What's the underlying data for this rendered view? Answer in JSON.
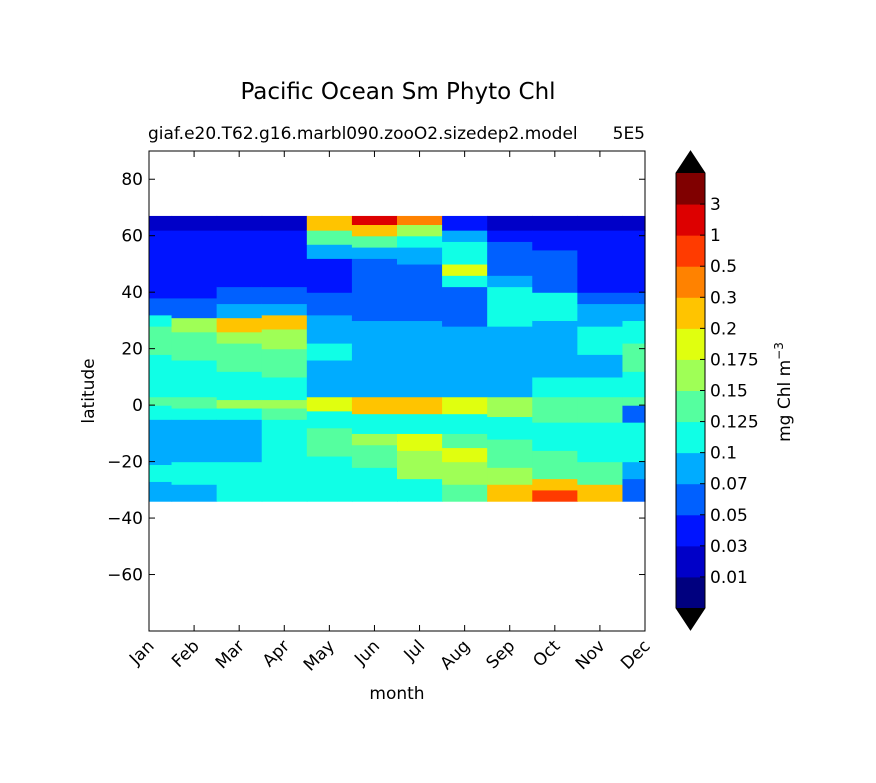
{
  "chart_data": {
    "type": "heatmap",
    "subtype": "filled-contour",
    "title": "Pacific Ocean Sm Phyto Chl",
    "subtitle_left": "giaf.e20.T62.g16.marbl090.zooO2.sizedep2.model",
    "subtitle_right": "5E5",
    "xlabel": "month",
    "ylabel": "latitude",
    "x_categories": [
      "Jan",
      "Feb",
      "Mar",
      "Apr",
      "May",
      "Jun",
      "Jul",
      "Aug",
      "Sep",
      "Oct",
      "Nov",
      "Dec"
    ],
    "y_ticks": [
      "80",
      "60",
      "40",
      "20",
      "0",
      "−20",
      "−40",
      "−60"
    ],
    "y_tick_values": [
      80,
      60,
      40,
      20,
      0,
      -20,
      -40,
      -60
    ],
    "ylim": [
      -80,
      90
    ],
    "data_lat_range": [
      -34,
      67
    ],
    "colorbar": {
      "label": "mg Chl m",
      "label_exponent": "−3",
      "levels": [
        0.01,
        0.03,
        0.05,
        0.07,
        0.1,
        0.125,
        0.15,
        0.175,
        0.2,
        0.3,
        0.5,
        1,
        3
      ],
      "tick_labels": [
        "0.01",
        "0.03",
        "0.05",
        "0.07",
        "0.1",
        "0.125",
        "0.15",
        "0.175",
        "0.2",
        "0.3",
        "0.5",
        "1",
        "3"
      ],
      "colors": [
        "#00007f",
        "#0000c8",
        "#0014ff",
        "#0060ff",
        "#00acff",
        "#10ffe6",
        "#55ff9f",
        "#9fff56",
        "#e0ff0f",
        "#ffc400",
        "#ff8200",
        "#ff3b00",
        "#dd0000",
        "#800000"
      ],
      "extend": "both",
      "over_color": "#000000",
      "under_color": "#000000"
    },
    "bands": [
      {
        "month": "Jan",
        "segments": [
          [
            -34,
            -27,
            4
          ],
          [
            -27,
            -21,
            5
          ],
          [
            -21,
            -5,
            4
          ],
          [
            -5,
            0,
            5
          ],
          [
            0,
            3,
            6
          ],
          [
            3,
            18,
            5
          ],
          [
            18,
            28,
            6
          ],
          [
            28,
            32,
            5
          ],
          [
            32,
            38,
            3
          ],
          [
            38,
            62,
            2
          ],
          [
            62,
            67,
            1
          ]
        ]
      },
      {
        "month": "Feb",
        "segments": [
          [
            -34,
            -28,
            4
          ],
          [
            -28,
            -20,
            5
          ],
          [
            -20,
            -5,
            4
          ],
          [
            -5,
            -1,
            5
          ],
          [
            -1,
            3,
            6
          ],
          [
            3,
            16,
            5
          ],
          [
            16,
            26,
            6
          ],
          [
            26,
            31,
            7
          ],
          [
            31,
            38,
            3
          ],
          [
            38,
            62,
            2
          ],
          [
            62,
            67,
            1
          ]
        ]
      },
      {
        "month": "Mar",
        "segments": [
          [
            -34,
            -20,
            5
          ],
          [
            -20,
            -5,
            4
          ],
          [
            -5,
            -1,
            5
          ],
          [
            -1,
            2,
            7
          ],
          [
            2,
            12,
            5
          ],
          [
            12,
            22,
            6
          ],
          [
            22,
            26,
            7
          ],
          [
            26,
            31,
            9
          ],
          [
            31,
            36,
            4
          ],
          [
            36,
            42,
            3
          ],
          [
            42,
            62,
            2
          ],
          [
            62,
            67,
            1
          ]
        ]
      },
      {
        "month": "Apr",
        "segments": [
          [
            -34,
            -20,
            5
          ],
          [
            -20,
            -5,
            5
          ],
          [
            -5,
            -1,
            6
          ],
          [
            -1,
            2,
            7
          ],
          [
            2,
            10,
            5
          ],
          [
            10,
            20,
            6
          ],
          [
            20,
            27,
            7
          ],
          [
            27,
            32,
            9
          ],
          [
            32,
            36,
            4
          ],
          [
            36,
            42,
            3
          ],
          [
            42,
            62,
            2
          ],
          [
            62,
            67,
            1
          ]
        ]
      },
      {
        "month": "May",
        "segments": [
          [
            -34,
            -18,
            5
          ],
          [
            -18,
            -8,
            6
          ],
          [
            -8,
            -2,
            5
          ],
          [
            -2,
            3,
            8
          ],
          [
            3,
            16,
            4
          ],
          [
            16,
            22,
            5
          ],
          [
            22,
            32,
            4
          ],
          [
            32,
            40,
            3
          ],
          [
            40,
            52,
            2
          ],
          [
            52,
            57,
            4
          ],
          [
            57,
            62,
            6
          ],
          [
            62,
            67,
            9
          ]
        ]
      },
      {
        "month": "Jun",
        "segments": [
          [
            -34,
            -22,
            5
          ],
          [
            -22,
            -14,
            6
          ],
          [
            -14,
            -10,
            7
          ],
          [
            -10,
            -3,
            5
          ],
          [
            -3,
            3,
            9
          ],
          [
            3,
            30,
            4
          ],
          [
            30,
            40,
            3
          ],
          [
            40,
            52,
            3
          ],
          [
            52,
            56,
            4
          ],
          [
            56,
            60,
            6
          ],
          [
            60,
            64,
            9
          ],
          [
            64,
            67,
            12
          ]
        ]
      },
      {
        "month": "Jul",
        "segments": [
          [
            -34,
            -26,
            5
          ],
          [
            -26,
            -16,
            7
          ],
          [
            -16,
            -10,
            8
          ],
          [
            -10,
            -3,
            5
          ],
          [
            -3,
            3,
            9
          ],
          [
            3,
            30,
            4
          ],
          [
            30,
            40,
            3
          ],
          [
            40,
            50,
            3
          ],
          [
            50,
            56,
            4
          ],
          [
            56,
            60,
            5
          ],
          [
            60,
            64,
            7
          ],
          [
            64,
            67,
            10
          ]
        ]
      },
      {
        "month": "Aug",
        "segments": [
          [
            -34,
            -28,
            6
          ],
          [
            -28,
            -20,
            7
          ],
          [
            -20,
            -15,
            8
          ],
          [
            -15,
            -10,
            6
          ],
          [
            -10,
            -3,
            5
          ],
          [
            -3,
            3,
            8
          ],
          [
            3,
            28,
            4
          ],
          [
            28,
            42,
            3
          ],
          [
            42,
            46,
            5
          ],
          [
            46,
            50,
            8
          ],
          [
            50,
            58,
            5
          ],
          [
            58,
            62,
            4
          ],
          [
            62,
            67,
            2
          ]
        ]
      },
      {
        "month": "Sep",
        "segments": [
          [
            -34,
            -28,
            9
          ],
          [
            -28,
            -22,
            7
          ],
          [
            -22,
            -12,
            6
          ],
          [
            -12,
            -4,
            5
          ],
          [
            -4,
            3,
            7
          ],
          [
            3,
            28,
            4
          ],
          [
            28,
            42,
            5
          ],
          [
            42,
            46,
            4
          ],
          [
            46,
            58,
            3
          ],
          [
            58,
            62,
            2
          ],
          [
            62,
            67,
            1
          ]
        ]
      },
      {
        "month": "Oct",
        "segments": [
          [
            -34,
            -30,
            11
          ],
          [
            -30,
            -26,
            9
          ],
          [
            -26,
            -16,
            6
          ],
          [
            -16,
            -6,
            5
          ],
          [
            -6,
            3,
            6
          ],
          [
            3,
            10,
            5
          ],
          [
            10,
            30,
            4
          ],
          [
            30,
            40,
            5
          ],
          [
            40,
            55,
            3
          ],
          [
            55,
            62,
            2
          ],
          [
            62,
            67,
            1
          ]
        ]
      },
      {
        "month": "Nov",
        "segments": [
          [
            -34,
            -28,
            9
          ],
          [
            -28,
            -20,
            6
          ],
          [
            -20,
            -6,
            5
          ],
          [
            -6,
            3,
            6
          ],
          [
            3,
            10,
            5
          ],
          [
            10,
            18,
            4
          ],
          [
            18,
            28,
            5
          ],
          [
            28,
            36,
            4
          ],
          [
            36,
            40,
            3
          ],
          [
            40,
            62,
            2
          ],
          [
            62,
            67,
            1
          ]
        ]
      },
      {
        "month": "Dec",
        "segments": [
          [
            -34,
            -26,
            3
          ],
          [
            -26,
            -20,
            4
          ],
          [
            -20,
            -6,
            5
          ],
          [
            -6,
            0,
            3
          ],
          [
            0,
            3,
            6
          ],
          [
            3,
            12,
            5
          ],
          [
            12,
            22,
            6
          ],
          [
            22,
            30,
            5
          ],
          [
            30,
            36,
            4
          ],
          [
            36,
            40,
            3
          ],
          [
            40,
            62,
            2
          ],
          [
            62,
            67,
            1
          ]
        ]
      }
    ]
  }
}
